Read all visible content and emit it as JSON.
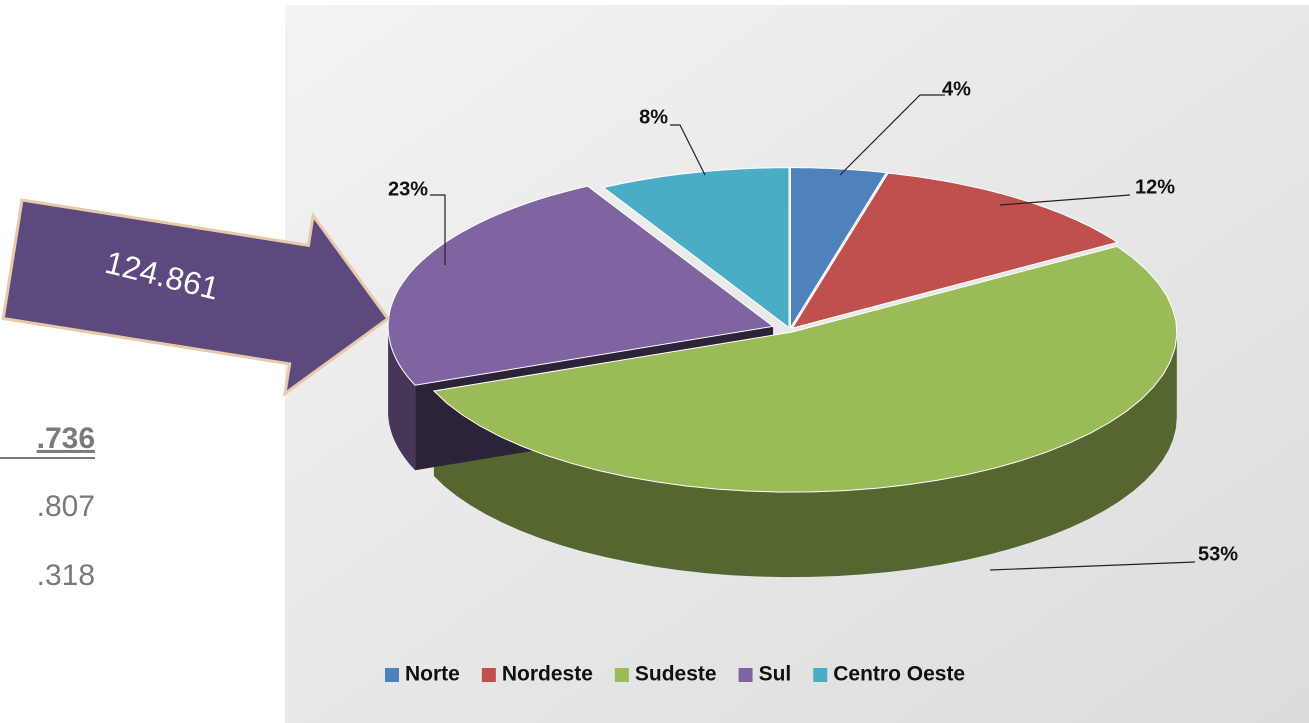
{
  "chart_data": {
    "type": "pie",
    "categories": [
      "Norte",
      "Nordeste",
      "Sudeste",
      "Sul",
      "Centro Oeste"
    ],
    "values": [
      4,
      12,
      53,
      23,
      8
    ],
    "value_labels": [
      "4%",
      "12%",
      "53%",
      "23%",
      "8%"
    ],
    "colors": [
      "#4f81bd",
      "#c0504d",
      "#9bbb59",
      "#8064a2",
      "#4bacc6"
    ],
    "legend": "bottom"
  },
  "arrow_label": "124.861",
  "side_values": [
    ".736",
    ".807",
    ".318"
  ]
}
